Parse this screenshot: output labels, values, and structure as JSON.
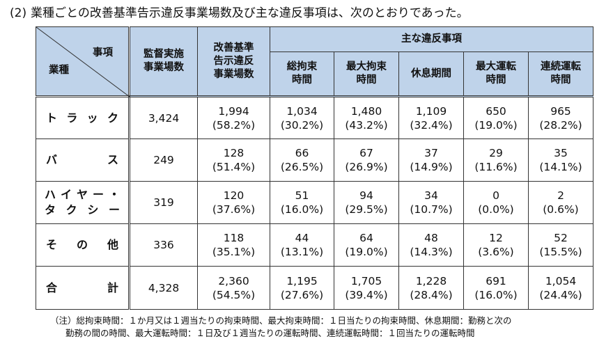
{
  "title": {
    "number": "(2)",
    "text": "業種ごとの改善基準告示違反事業場数及び主な違反事項は、次のとおりであった。"
  },
  "table": {
    "corner": {
      "top_label": "事項",
      "bottom_label": "業種"
    },
    "headers": {
      "inspected": [
        "監督実施",
        "事業場数"
      ],
      "violating": [
        "改善基準",
        "告示違反",
        "事業場数"
      ],
      "main_group": "主な違反事項",
      "sub": [
        [
          "総拘束",
          "時間"
        ],
        [
          "最大拘束",
          "時間"
        ],
        [
          "休息期間"
        ],
        [
          "最大運転",
          "時間"
        ],
        [
          "連続運転",
          "時間"
        ]
      ]
    },
    "rows": [
      {
        "category": "トラック",
        "category_chars": [
          "ト",
          "ラ",
          "ッ",
          "ク"
        ],
        "inspected": "3,424",
        "cells": [
          [
            "1,994",
            "(58.2%)"
          ],
          [
            "1,034",
            "(30.2%)"
          ],
          [
            "1,480",
            "(43.2%)"
          ],
          [
            "1,109",
            "(32.4%)"
          ],
          [
            "650",
            "(19.0%)"
          ],
          [
            "965",
            "(28.2%)"
          ]
        ]
      },
      {
        "category": "バス",
        "category_chars": [
          "バ",
          "ス"
        ],
        "inspected": "249",
        "cells": [
          [
            "128",
            "(51.4%)"
          ],
          [
            "66",
            "(26.5%)"
          ],
          [
            "67",
            "(26.9%)"
          ],
          [
            "37",
            "(14.9%)"
          ],
          [
            "29",
            "(11.6%)"
          ],
          [
            "35",
            "(14.1%)"
          ]
        ]
      },
      {
        "category": "ハイヤー・タクシー",
        "category_lines": [
          [
            "ハ",
            "イ",
            "ヤ",
            "ー",
            "・"
          ],
          [
            "タ",
            "ク",
            "シ",
            "ー"
          ]
        ],
        "inspected": "319",
        "cells": [
          [
            "120",
            "(37.6%)"
          ],
          [
            "51",
            "(16.0%)"
          ],
          [
            "94",
            "(29.5%)"
          ],
          [
            "34",
            "(10.7%)"
          ],
          [
            "0",
            "(0.0%)"
          ],
          [
            "2",
            "(0.6%)"
          ]
        ]
      },
      {
        "category": "その他",
        "category_chars": [
          "そ",
          "の",
          "他"
        ],
        "inspected": "336",
        "cells": [
          [
            "118",
            "(35.1%)"
          ],
          [
            "44",
            "(13.1%)"
          ],
          [
            "64",
            "(19.0%)"
          ],
          [
            "48",
            "(14.3%)"
          ],
          [
            "12",
            "(3.6%)"
          ],
          [
            "52",
            "(15.5%)"
          ]
        ]
      },
      {
        "category": "合計",
        "category_chars": [
          "合",
          "計"
        ],
        "inspected": "4,328",
        "cells": [
          [
            "2,360",
            "(54.5%)"
          ],
          [
            "1,195",
            "(27.6%)"
          ],
          [
            "1,705",
            "(39.4%)"
          ],
          [
            "1,228",
            "(28.4%)"
          ],
          [
            "691",
            "(16.0%)"
          ],
          [
            "1,054",
            "(24.4%)"
          ]
        ]
      }
    ]
  },
  "note": {
    "line1": "（注）総拘束時間：１か月又は１週当たりの拘束時間、最大拘束時間：１日当たりの拘束時間、休息期間：勤務と次の",
    "line2": "勤務の間の時間、最大運転時間：１日及び１週当たりの運転時間、連続運転時間：１回当たりの運転時間"
  },
  "colors": {
    "header_bg": "#bfd3ea",
    "border": "#333333"
  }
}
